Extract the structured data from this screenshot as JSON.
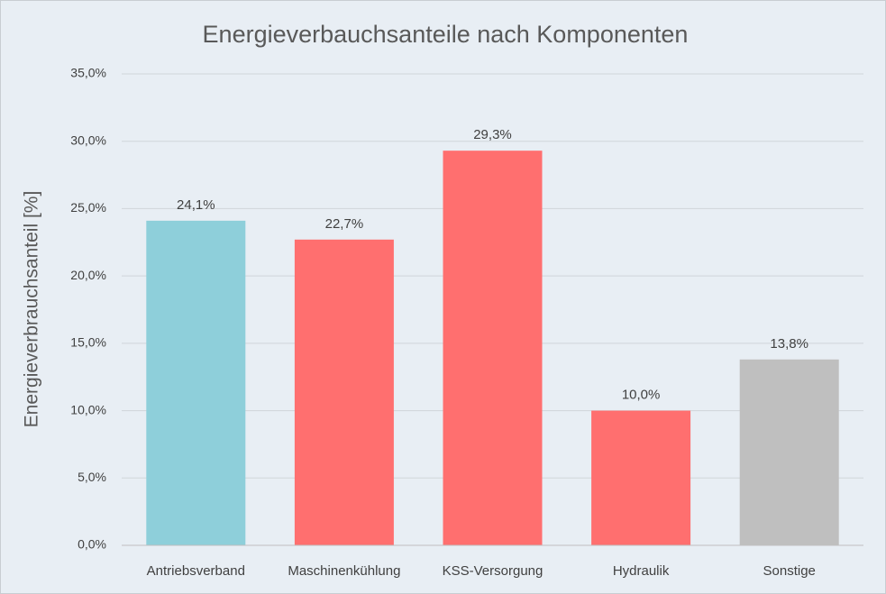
{
  "chart_data": {
    "type": "bar",
    "title": "Energieverbauchsanteile nach Komponenten",
    "y_label": "Energieverbrauchsanteil [%]",
    "categories": [
      "Antriebsverband",
      "Maschinenkühlung",
      "KSS-Versorgung",
      "Hydraulik",
      "Sonstige"
    ],
    "values": [
      24.1,
      22.7,
      29.3,
      10.0,
      13.8
    ],
    "value_labels": [
      "24,1%",
      "22,7%",
      "29,3%",
      "10,0%",
      "13,8%"
    ],
    "colors": [
      "#8ecfda",
      "#ff6f6f",
      "#ff6f6f",
      "#ff6f6f",
      "#bfbfbf"
    ],
    "ylim": [
      0,
      35
    ],
    "yticks": [
      {
        "value": 0,
        "label": "0,0%"
      },
      {
        "value": 5,
        "label": "5,0%"
      },
      {
        "value": 10,
        "label": "10,0%"
      },
      {
        "value": 15,
        "label": "15,0%"
      },
      {
        "value": 20,
        "label": "20,0%"
      },
      {
        "value": 25,
        "label": "25,0%"
      },
      {
        "value": 30,
        "label": "30,0%"
      },
      {
        "value": 35,
        "label": "35,0%"
      }
    ],
    "grid": true
  }
}
